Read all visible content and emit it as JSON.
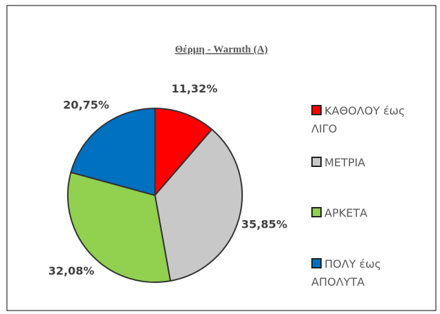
{
  "chart_data": {
    "type": "pie",
    "title": "Θέρμη - Warmth (A)",
    "categories": [
      "ΚΑΘΟΛΟΥ έως ΛΙΓΟ",
      "ΜΕΤΡΙΑ",
      "ΑΡΚΕΤΑ",
      "ΠΟΛΥ έως ΑΠΟΛΥΤΑ"
    ],
    "values": [
      11.32,
      35.85,
      32.08,
      20.75
    ],
    "value_labels": [
      "11,32%",
      "35,85%",
      "32,08%",
      "20,75%"
    ],
    "colors": [
      "#ff0000",
      "#c8c8c8",
      "#92d050",
      "#0070c0"
    ],
    "legend": "right"
  }
}
